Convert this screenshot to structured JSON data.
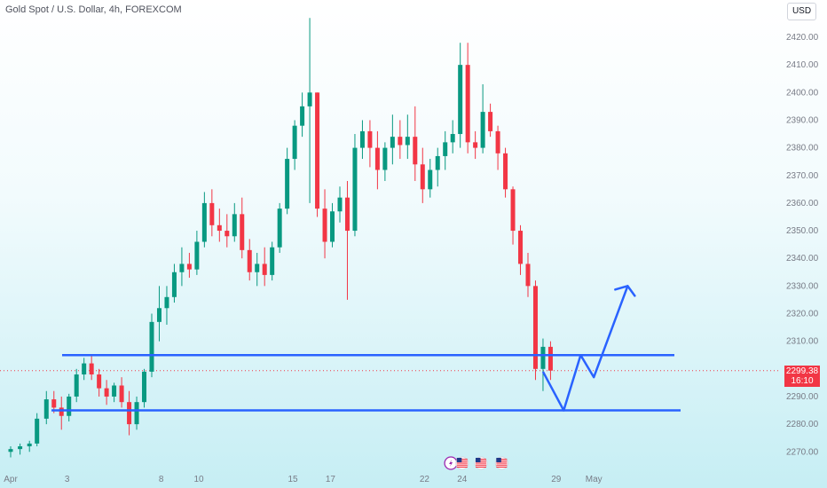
{
  "header": {
    "title": "Gold Spot / U.S. Dollar, 4h, FOREXCOM",
    "currency": "USD"
  },
  "last_price": {
    "value": "2299.38",
    "countdown": "16:10"
  },
  "colors": {
    "up": "#089981",
    "down": "#f23645",
    "annotation": "#2962ff"
  },
  "event_icons": [
    {
      "name": "lightning-icon",
      "x": 23.4
    },
    {
      "name": "us-flag-icon",
      "x": 24.0
    },
    {
      "name": "us-flag-icon",
      "x": 25.0
    },
    {
      "name": "us-flag-icon",
      "x": 26.1
    }
  ],
  "chart_data": {
    "type": "candlestick",
    "title": "Gold Spot / U.S. Dollar, 4h, FOREXCOM",
    "y_axis": {
      "min": 2265,
      "max": 2427,
      "ticks": [
        2270,
        2280,
        2290,
        2300,
        2310,
        2320,
        2330,
        2340,
        2350,
        2360,
        2370,
        2380,
        2390,
        2400,
        2410,
        2420
      ]
    },
    "x_axis": {
      "ticks": [
        {
          "x": 0,
          "label": "Apr"
        },
        {
          "x": 3,
          "label": "3"
        },
        {
          "x": 8,
          "label": "8"
        },
        {
          "x": 10,
          "label": "10"
        },
        {
          "x": 15,
          "label": "15"
        },
        {
          "x": 17,
          "label": "17"
        },
        {
          "x": 22,
          "label": "22"
        },
        {
          "x": 24,
          "label": "24"
        },
        {
          "x": 29,
          "label": "29"
        },
        {
          "x": 31,
          "label": "May"
        }
      ]
    },
    "candles": [
      [
        0.0,
        2270,
        2272,
        2268,
        2271
      ],
      [
        0.5,
        2271,
        2273,
        2269,
        2272
      ],
      [
        1.0,
        2272,
        2274,
        2270,
        2273
      ],
      [
        1.4,
        2273,
        2284,
        2272,
        2282
      ],
      [
        1.9,
        2282,
        2292,
        2280,
        2289
      ],
      [
        2.3,
        2289,
        2292,
        2284,
        2286
      ],
      [
        2.7,
        2286,
        2290,
        2278,
        2283
      ],
      [
        3.1,
        2283,
        2291,
        2281,
        2290
      ],
      [
        3.5,
        2290,
        2300,
        2288,
        2298
      ],
      [
        3.9,
        2298,
        2304,
        2296,
        2302
      ],
      [
        4.3,
        2302,
        2305,
        2296,
        2298
      ],
      [
        4.7,
        2298,
        2300,
        2290,
        2293
      ],
      [
        5.1,
        2293,
        2296,
        2287,
        2290
      ],
      [
        5.5,
        2290,
        2295,
        2288,
        2294
      ],
      [
        5.9,
        2294,
        2297,
        2286,
        2288
      ],
      [
        6.3,
        2288,
        2292,
        2276,
        2280
      ],
      [
        6.7,
        2280,
        2290,
        2278,
        2288
      ],
      [
        7.1,
        2288,
        2300,
        2286,
        2299
      ],
      [
        7.5,
        2299,
        2320,
        2297,
        2317
      ],
      [
        7.9,
        2317,
        2330,
        2310,
        2322
      ],
      [
        8.3,
        2322,
        2330,
        2316,
        2326
      ],
      [
        8.7,
        2326,
        2338,
        2324,
        2335
      ],
      [
        9.1,
        2335,
        2344,
        2330,
        2338
      ],
      [
        9.5,
        2338,
        2342,
        2333,
        2336
      ],
      [
        9.9,
        2336,
        2350,
        2334,
        2346
      ],
      [
        10.3,
        2346,
        2364,
        2344,
        2360
      ],
      [
        10.7,
        2360,
        2365,
        2348,
        2352
      ],
      [
        11.1,
        2352,
        2358,
        2346,
        2350
      ],
      [
        11.5,
        2350,
        2356,
        2344,
        2348
      ],
      [
        11.9,
        2348,
        2360,
        2346,
        2356
      ],
      [
        12.3,
        2356,
        2362,
        2340,
        2343
      ],
      [
        12.7,
        2343,
        2347,
        2332,
        2335
      ],
      [
        13.1,
        2335,
        2342,
        2330,
        2338
      ],
      [
        13.5,
        2338,
        2344,
        2330,
        2334
      ],
      [
        13.9,
        2334,
        2346,
        2332,
        2344
      ],
      [
        14.3,
        2344,
        2360,
        2342,
        2358
      ],
      [
        14.7,
        2358,
        2380,
        2356,
        2376
      ],
      [
        15.1,
        2376,
        2390,
        2372,
        2388
      ],
      [
        15.5,
        2388,
        2400,
        2384,
        2395
      ],
      [
        15.9,
        2395,
        2427,
        2360,
        2400
      ],
      [
        16.3,
        2400,
        2400,
        2355,
        2358
      ],
      [
        16.7,
        2358,
        2365,
        2340,
        2346
      ],
      [
        17.1,
        2346,
        2360,
        2344,
        2357
      ],
      [
        17.5,
        2357,
        2366,
        2353,
        2362
      ],
      [
        17.9,
        2362,
        2368,
        2325,
        2350
      ],
      [
        18.3,
        2350,
        2385,
        2348,
        2380
      ],
      [
        18.7,
        2380,
        2390,
        2376,
        2386
      ],
      [
        19.1,
        2386,
        2390,
        2373,
        2380
      ],
      [
        19.5,
        2380,
        2386,
        2365,
        2372
      ],
      [
        19.9,
        2372,
        2382,
        2368,
        2380
      ],
      [
        20.3,
        2380,
        2392,
        2374,
        2384
      ],
      [
        20.7,
        2384,
        2390,
        2376,
        2381
      ],
      [
        21.1,
        2381,
        2392,
        2376,
        2384
      ],
      [
        21.5,
        2384,
        2395,
        2368,
        2374
      ],
      [
        21.9,
        2374,
        2380,
        2360,
        2365
      ],
      [
        22.3,
        2365,
        2376,
        2362,
        2372
      ],
      [
        22.7,
        2372,
        2380,
        2366,
        2377
      ],
      [
        23.1,
        2377,
        2386,
        2372,
        2382
      ],
      [
        23.5,
        2382,
        2390,
        2378,
        2385
      ],
      [
        23.9,
        2385,
        2418,
        2380,
        2410
      ],
      [
        24.3,
        2410,
        2418,
        2378,
        2382
      ],
      [
        24.7,
        2382,
        2386,
        2376,
        2380
      ],
      [
        25.1,
        2380,
        2403,
        2378,
        2393
      ],
      [
        25.5,
        2393,
        2396,
        2384,
        2386
      ],
      [
        25.9,
        2386,
        2388,
        2372,
        2378
      ],
      [
        26.3,
        2378,
        2380,
        2362,
        2365
      ],
      [
        26.7,
        2365,
        2366,
        2345,
        2350
      ],
      [
        27.1,
        2350,
        2352,
        2334,
        2338
      ],
      [
        27.5,
        2338,
        2342,
        2326,
        2330
      ],
      [
        27.9,
        2330,
        2332,
        2296,
        2300
      ],
      [
        28.3,
        2300,
        2311,
        2292,
        2308
      ],
      [
        28.7,
        2308,
        2310,
        2296,
        2299.38
      ]
    ],
    "horizontal_levels": [
      2305,
      2285
    ],
    "projection_path": [
      [
        28.3,
        2299
      ],
      [
        29.4,
        2285
      ],
      [
        30.3,
        2305
      ],
      [
        31.0,
        2297
      ],
      [
        32.8,
        2330
      ]
    ]
  }
}
